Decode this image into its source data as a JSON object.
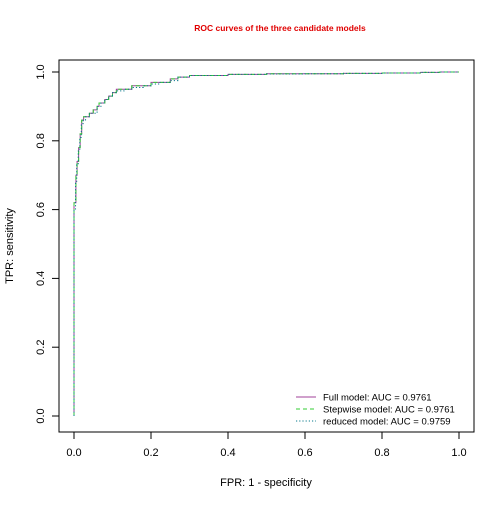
{
  "chart_data": {
    "type": "line",
    "title": "ROC curves of the three candidate models",
    "xlabel": "FPR: 1 - specificity",
    "ylabel": "TPR: sensitivity",
    "xlim": [
      0,
      1
    ],
    "ylim": [
      0,
      1
    ],
    "xticks": [
      "0.0",
      "0.2",
      "0.4",
      "0.6",
      "0.8",
      "1.0"
    ],
    "yticks": [
      "0.0",
      "0.2",
      "0.4",
      "0.6",
      "0.8",
      "1.0"
    ],
    "grid": false,
    "legend_position": "bottom-right",
    "colors": {
      "title": "#e00000",
      "full": "#a0409a",
      "stepwise": "#33cc33",
      "reduced": "#0a7a8c"
    },
    "series": [
      {
        "name": "Full model: AUC =  0.9761",
        "style": "solid",
        "x": [
          0,
          0,
          0.005,
          0.008,
          0.012,
          0.016,
          0.02,
          0.025,
          0.03,
          0.04,
          0.05,
          0.06,
          0.065,
          0.08,
          0.09,
          0.1,
          0.11,
          0.13,
          0.15,
          0.18,
          0.2,
          0.22,
          0.25,
          0.27,
          0.3,
          0.35,
          0.4,
          0.5,
          0.6,
          0.7,
          0.8,
          0.9,
          0.95,
          1.0
        ],
        "y": [
          0,
          0.62,
          0.7,
          0.74,
          0.78,
          0.82,
          0.86,
          0.87,
          0.87,
          0.88,
          0.89,
          0.9,
          0.91,
          0.92,
          0.93,
          0.94,
          0.95,
          0.95,
          0.96,
          0.96,
          0.97,
          0.97,
          0.98,
          0.985,
          0.99,
          0.99,
          0.993,
          0.995,
          0.995,
          0.996,
          0.997,
          0.999,
          1.0,
          1.0
        ]
      },
      {
        "name": "Stepwise model: AUC = 0.9761",
        "style": "dashed",
        "x": [
          0,
          0,
          0.005,
          0.008,
          0.012,
          0.016,
          0.02,
          0.025,
          0.03,
          0.04,
          0.05,
          0.06,
          0.065,
          0.08,
          0.09,
          0.1,
          0.11,
          0.13,
          0.15,
          0.18,
          0.2,
          0.22,
          0.25,
          0.27,
          0.3,
          0.35,
          0.4,
          0.5,
          0.6,
          0.7,
          0.8,
          0.9,
          0.95,
          1.0
        ],
        "y": [
          0,
          0.62,
          0.7,
          0.74,
          0.78,
          0.82,
          0.86,
          0.87,
          0.87,
          0.88,
          0.89,
          0.9,
          0.91,
          0.92,
          0.93,
          0.94,
          0.95,
          0.95,
          0.96,
          0.96,
          0.97,
          0.97,
          0.98,
          0.985,
          0.99,
          0.99,
          0.993,
          0.995,
          0.995,
          0.996,
          0.997,
          0.999,
          1.0,
          1.0
        ]
      },
      {
        "name": "reduced model: AUC = 0.9759",
        "style": "dotted",
        "x": [
          0,
          0,
          0.004,
          0.007,
          0.011,
          0.015,
          0.019,
          0.024,
          0.03,
          0.04,
          0.05,
          0.06,
          0.07,
          0.08,
          0.09,
          0.1,
          0.11,
          0.13,
          0.15,
          0.18,
          0.2,
          0.22,
          0.25,
          0.27,
          0.3,
          0.35,
          0.4,
          0.5,
          0.6,
          0.7,
          0.8,
          0.9,
          0.95,
          1.0
        ],
        "y": [
          0,
          0.6,
          0.68,
          0.73,
          0.77,
          0.81,
          0.85,
          0.86,
          0.87,
          0.88,
          0.88,
          0.9,
          0.91,
          0.92,
          0.93,
          0.94,
          0.945,
          0.95,
          0.955,
          0.96,
          0.965,
          0.97,
          0.975,
          0.985,
          0.99,
          0.99,
          0.993,
          0.994,
          0.995,
          0.996,
          0.997,
          0.999,
          1.0,
          1.0
        ]
      }
    ]
  }
}
